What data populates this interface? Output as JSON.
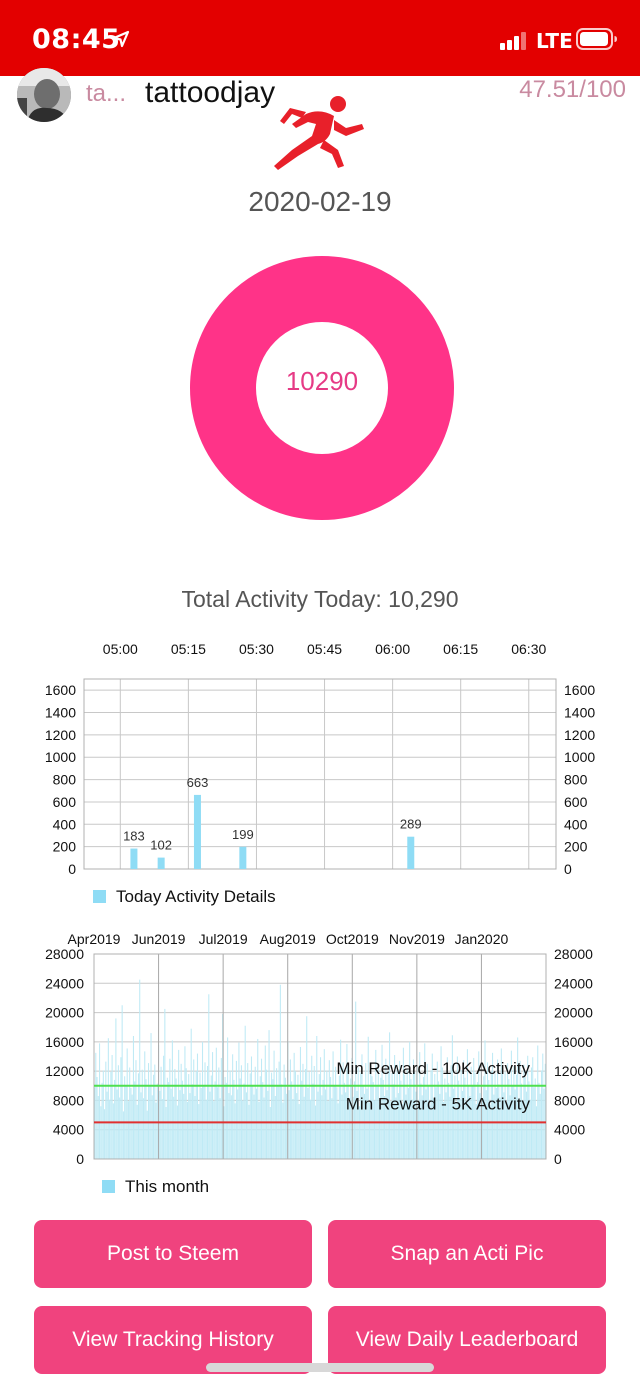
{
  "status_bar": {
    "time": "08:45",
    "network": "LTE"
  },
  "header": {
    "short_name": "ta...",
    "username": "tattoodjay",
    "score": "47.51/100"
  },
  "date": "2020-02-19",
  "donut": {
    "center_value": "10290",
    "color": "#ff3388"
  },
  "total_activity": "Total Activity Today: 10,290",
  "chart_data": [
    {
      "type": "bar",
      "x": [
        "05:03",
        "05:09",
        "05:17",
        "05:27",
        "06:04"
      ],
      "values": [
        183,
        102,
        663,
        199,
        289
      ],
      "x_tick_labels": [
        "05:00",
        "05:15",
        "05:30",
        "05:45",
        "06:00",
        "06:15",
        "06:30"
      ],
      "y_ticks": [
        0,
        200,
        400,
        600,
        800,
        1000,
        1200,
        1400,
        1600
      ],
      "ylim": [
        0,
        1700
      ],
      "legend": "Today Activity Details",
      "legend_position": "bottom-left",
      "grid": true,
      "color": "#8fdcf5"
    },
    {
      "type": "bar",
      "x_tick_labels": [
        "Apr2019",
        "Jun2019",
        "Jul2019",
        "Aug2019",
        "Oct2019",
        "Nov2019",
        "Jan2020"
      ],
      "y_ticks": [
        0,
        4000,
        8000,
        12000,
        16000,
        20000,
        24000,
        28000
      ],
      "ylim": [
        0,
        28000
      ],
      "legend": "This month",
      "legend_position": "bottom-left",
      "grid": true,
      "color": "#bfeaf5",
      "reference_lines": [
        {
          "label": "Min Reward - 10K Activity",
          "value": 10000,
          "color": "#4ee04e"
        },
        {
          "label": "Min Reward - 5K Activity",
          "value": 5000,
          "color": "#e03030"
        }
      ],
      "daily_values": [
        9800,
        14500,
        11200,
        8600,
        15800,
        7200,
        10400,
        12100,
        6800,
        13300,
        9200,
        16500,
        8100,
        11900,
        14200,
        7600,
        10800,
        19200,
        9500,
        12800,
        8400,
        13900,
        21000,
        6500,
        11300,
        10100,
        15100,
        7900,
        12500,
        9700,
        8800,
        16800,
        10600,
        13500,
        7400,
        11700,
        24500,
        9100,
        12200,
        8300,
        14700,
        10900,
        6600,
        13100,
        9900,
        17200,
        8700,
        11500,
        12900,
        7700,
        10300,
        15600,
        9300,
        12600,
        8200,
        14100,
        20500,
        7100,
        11100,
        10500,
        13700,
        9600,
        16200,
        8500,
        12300,
        11000,
        7300,
        14900,
        9400,
        13000,
        10700,
        8900,
        15400,
        12400,
        7800,
        11600,
        9000,
        17800,
        10200,
        13600,
        8600,
        12000,
        14400,
        7500,
        11800,
        9700,
        16000,
        10000,
        13200,
        8100,
        12700,
        22500,
        9200,
        11400,
        14600,
        7900,
        10600,
        15200,
        9800,
        12500,
        8300,
        13800,
        19800,
        7200,
        11200,
        10400,
        16600,
        9000,
        12100,
        8700,
        14300,
        10800,
        7600,
        13400,
        9500,
        15900,
        11000,
        12800,
        8000,
        10300,
        18200,
        9100,
        13100,
        7400,
        11700,
        14000,
        10100,
        8800,
        12600,
        9600,
        16400,
        7800,
        11300,
        13700,
        10500,
        8400,
        15500,
        12200,
        9300,
        17600,
        7100,
        11800,
        10900,
        14800,
        8600,
        12400,
        9900,
        13300,
        23800,
        10200,
        7700,
        12900,
        11100,
        8900,
        16100,
        9400,
        13600,
        10600,
        8200,
        14500,
        12000,
        9000,
        11500,
        7500,
        15300,
        10700,
        13000,
        8500,
        12300,
        19500,
        9700,
        11900,
        8100,
        14100,
        10300,
        12700,
        7300,
        16800,
        9200,
        11600,
        13900,
        8700,
        10800,
        15000,
        9500,
        12100,
        7900,
        13500,
        11200,
        8300,
        14700,
        10000,
        12600,
        9800,
        7600,
        11400,
        16300,
        8800,
        13200,
        10400,
        9100,
        15700,
        12200,
        7800,
        11000,
        13800,
        8500,
        10600,
        21500,
        9300,
        12500,
        7200,
        11800,
        14300,
        10100,
        8900,
        13100,
        9600,
        16700,
        7700,
        12800,
        11300,
        10500,
        8000,
        14900,
        9900,
        12400,
        7400,
        11100,
        15600,
        10800,
        8600,
        13700,
        9400,
        12000,
        17300,
        7900,
        11700,
        10200,
        14200,
        8400,
        12900,
        9000,
        13400,
        10700,
        7500,
        15200,
        11500,
        8800,
        12300,
        9700,
        16000,
        10900,
        8100,
        13600,
        11900,
        9200,
        12700,
        7600,
        14600,
        10300,
        8700,
        11200,
        15800,
        9500,
        13000,
        10000,
        7300,
        12100,
        14400,
        8300,
        11600,
        9800,
        13300,
        10600,
        8900,
        15400,
        12500,
        7800,
        11000,
        9100,
        13900,
        10400,
        8500,
        12800,
        16900,
        9600,
        11400,
        7700,
        14000,
        10700,
        8200,
        12200,
        9300,
        13500,
        11100,
        7900,
        15000,
        10100,
        8600,
        12600,
        9900,
        13800,
        11800,
        7500,
        10500,
        14700,
        9000,
        12400,
        8000,
        11300,
        16200,
        9400,
        13200,
        10800,
        7400,
        12000,
        14500,
        8800,
        11700,
        9700,
        13600,
        10200,
        8400,
        15100,
        12300,
        9100,
        11900,
        7600,
        13100,
        10900,
        8700,
        14800,
        10000,
        12700,
        9500,
        11500,
        16600,
        8300,
        13400,
        10300,
        7800,
        12900,
        11200,
        9200,
        14100,
        10600,
        8100,
        12500,
        13900,
        9800,
        11000,
        7200,
        15500,
        10400,
        8900,
        12100,
        14400,
        9600,
        13000
      ]
    }
  ],
  "buttons": {
    "post": "Post to Steem",
    "snap": "Snap an Acti Pic",
    "history": "View Tracking History",
    "leaderboard": "View Daily Leaderboard"
  }
}
